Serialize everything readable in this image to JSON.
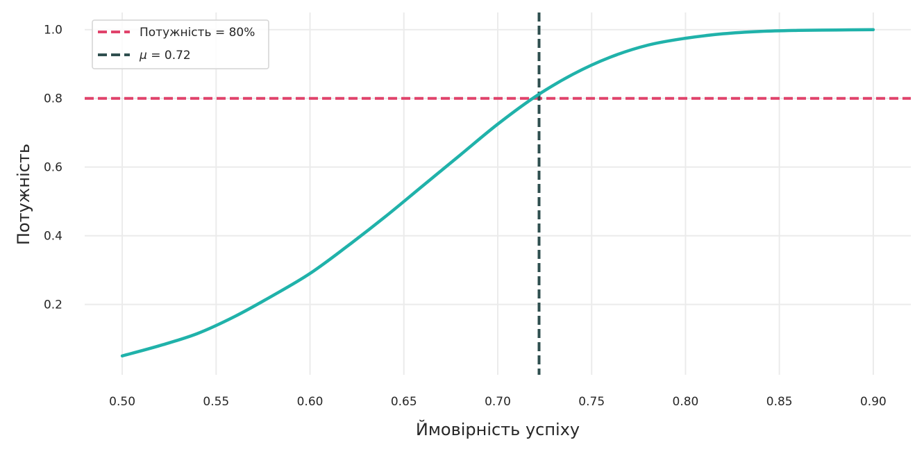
{
  "chart_data": {
    "type": "line",
    "title": "",
    "xlabel": "Ймовірність успіху",
    "ylabel": "Потужність",
    "xlim": [
      0.48,
      0.92
    ],
    "ylim": [
      -0.005,
      1.05
    ],
    "xticks": [
      0.5,
      0.55,
      0.6,
      0.65,
      0.7,
      0.75,
      0.8,
      0.85,
      0.9
    ],
    "xtick_labels": [
      "0.50",
      "0.55",
      "0.60",
      "0.65",
      "0.70",
      "0.75",
      "0.80",
      "0.85",
      "0.90"
    ],
    "yticks": [
      0.2,
      0.4,
      0.6,
      0.8,
      1.0
    ],
    "ytick_labels": [
      "0.2",
      "0.4",
      "0.6",
      "0.8",
      "1.0"
    ],
    "grid": true,
    "legend_position": "top-left",
    "series": [
      {
        "color": "#20b2aa",
        "x": [
          0.5,
          0.52,
          0.54,
          0.56,
          0.58,
          0.6,
          0.62,
          0.64,
          0.66,
          0.68,
          0.7,
          0.72,
          0.74,
          0.76,
          0.78,
          0.8,
          0.82,
          0.84,
          0.86,
          0.88,
          0.9
        ],
        "y": [
          0.05,
          0.08,
          0.115,
          0.165,
          0.225,
          0.29,
          0.37,
          0.455,
          0.545,
          0.635,
          0.725,
          0.805,
          0.87,
          0.92,
          0.955,
          0.975,
          0.988,
          0.995,
          0.998,
          0.999,
          1.0
        ]
      }
    ],
    "reference_lines": [
      {
        "orientation": "horizontal",
        "value": 0.8,
        "label": "Потужність = 80%",
        "color": "#e0436b",
        "style": "dashed"
      },
      {
        "orientation": "vertical",
        "value": 0.722,
        "label_prefix": "μ",
        "label_suffix": " = 0.72",
        "color": "#2f4f4f",
        "style": "dashed"
      }
    ]
  }
}
